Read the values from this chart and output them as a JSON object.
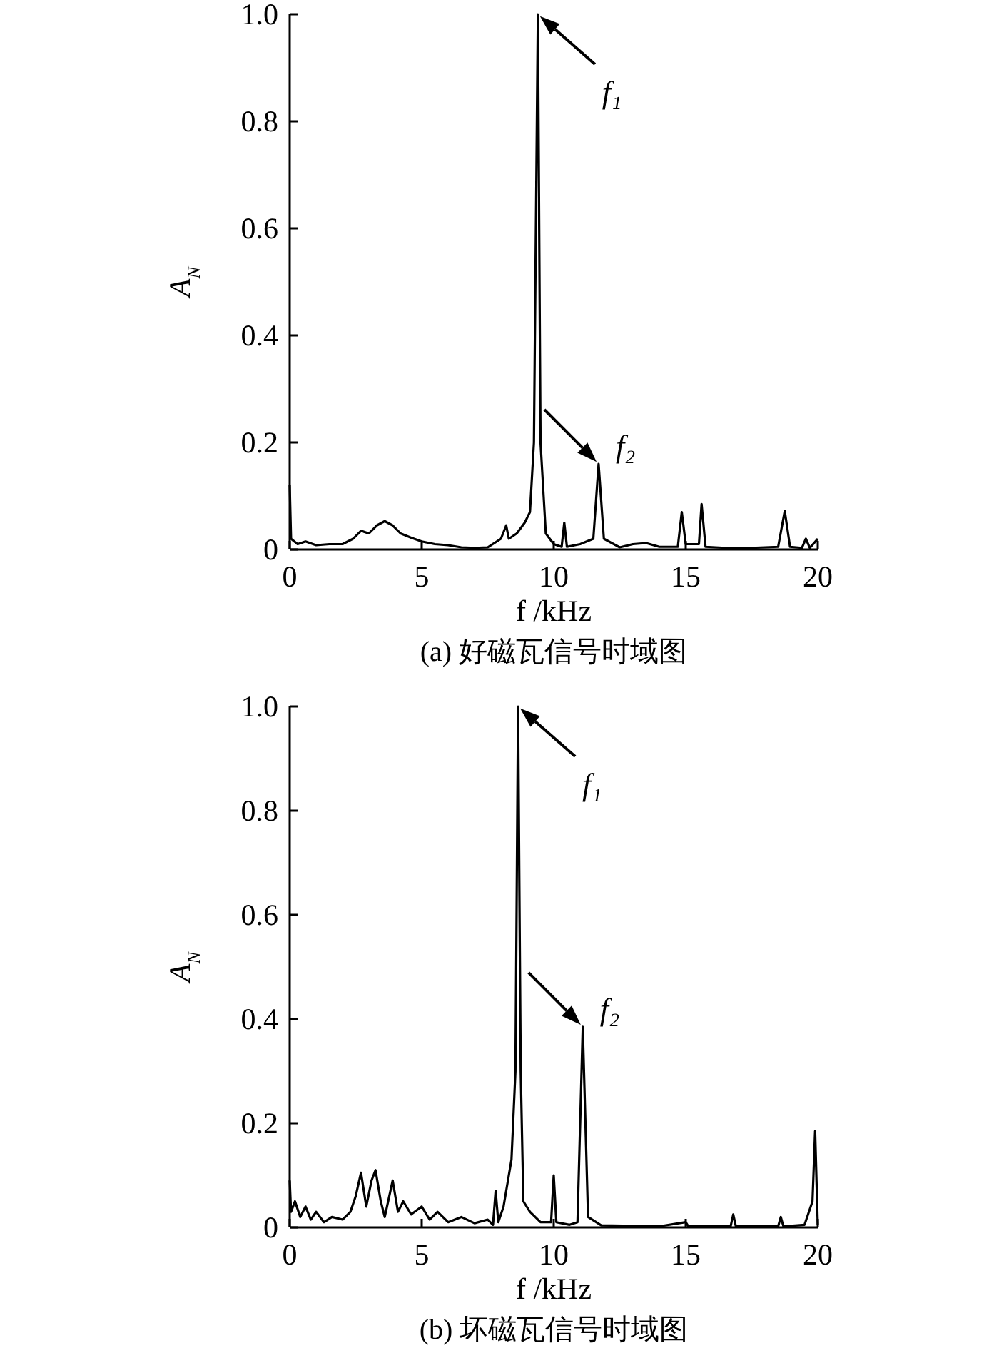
{
  "chart_data": [
    {
      "type": "line",
      "title": "(a) 好磁瓦信号时域图",
      "xlabel": "f /kHz",
      "ylabel": "A$_{N}$",
      "xlim": [
        0,
        20
      ],
      "xticks": [
        0,
        5,
        10,
        15,
        20
      ],
      "ylim": [
        0,
        1.0
      ],
      "yticks": [
        {
          "value": 0,
          "label": "0"
        },
        {
          "value": 0.2,
          "label": "0.2"
        },
        {
          "value": 0.4,
          "label": "0.4"
        },
        {
          "value": 0.6,
          "label": "0.6"
        },
        {
          "value": 0.8,
          "label": "0.8"
        },
        {
          "value": 1.0,
          "label": "1.0"
        }
      ],
      "grid": false,
      "series": [
        {
          "color": "#000000",
          "x": [
            0,
            0.05,
            0.3,
            0.6,
            1.0,
            1.5,
            2.0,
            2.4,
            2.7,
            3.0,
            3.3,
            3.6,
            3.9,
            4.2,
            4.6,
            5.0,
            5.5,
            6.0,
            6.5,
            7.0,
            7.5,
            8.0,
            8.2,
            8.3,
            8.6,
            8.9,
            9.1,
            9.25,
            9.4,
            9.5,
            9.7,
            10.0,
            10.3,
            10.4,
            10.5,
            11.0,
            11.5,
            11.7,
            11.9,
            12.5,
            13,
            13.5,
            14,
            14.7,
            14.85,
            15.0,
            15.5,
            15.6,
            15.75,
            16.5,
            17.5,
            18.5,
            18.75,
            18.95,
            19.4,
            19.55,
            19.7,
            20
          ],
          "values": [
            0.12,
            0.02,
            0.01,
            0.015,
            0.008,
            0.01,
            0.01,
            0.02,
            0.035,
            0.03,
            0.045,
            0.053,
            0.045,
            0.03,
            0.022,
            0.015,
            0.01,
            0.008,
            0.004,
            0.003,
            0.004,
            0.02,
            0.045,
            0.02,
            0.03,
            0.05,
            0.07,
            0.2,
            1.0,
            0.2,
            0.03,
            0.01,
            0.005,
            0.05,
            0.005,
            0.01,
            0.02,
            0.16,
            0.02,
            0.004,
            0.01,
            0.012,
            0.005,
            0.005,
            0.07,
            0.01,
            0.01,
            0.085,
            0.005,
            0.003,
            0.003,
            0.005,
            0.072,
            0.005,
            0.003,
            0.02,
            0.003,
            0.02
          ]
        }
      ],
      "annotations": [
        {
          "text": "f₁",
          "x": 9.4,
          "y": 1.0
        },
        {
          "text": "f₂",
          "x": 11.7,
          "y": 0.16
        }
      ]
    },
    {
      "type": "line",
      "title": "(b) 坏磁瓦信号时域图",
      "xlabel": "f /kHz",
      "ylabel": "A$_{N}$",
      "xlim": [
        0,
        20
      ],
      "xticks": [
        0,
        5,
        10,
        15,
        20
      ],
      "ylim": [
        0,
        1.0
      ],
      "yticks": [
        {
          "value": 0,
          "label": "0"
        },
        {
          "value": 0.2,
          "label": "0.2"
        },
        {
          "value": 0.4,
          "label": "0.4"
        },
        {
          "value": 0.6,
          "label": "0.6"
        },
        {
          "value": 0.8,
          "label": "0.8"
        },
        {
          "value": 1.0,
          "label": "1.0"
        }
      ],
      "grid": false,
      "series": [
        {
          "color": "#000000",
          "x": [
            0,
            0.05,
            0.2,
            0.4,
            0.6,
            0.8,
            1.0,
            1.3,
            1.6,
            2.0,
            2.3,
            2.5,
            2.7,
            2.9,
            3.1,
            3.25,
            3.45,
            3.6,
            3.9,
            4.1,
            4.3,
            4.6,
            5.0,
            5.3,
            5.6,
            6.0,
            6.5,
            7.0,
            7.5,
            7.7,
            7.8,
            7.9,
            8.1,
            8.4,
            8.55,
            8.65,
            8.75,
            8.85,
            9.1,
            9.5,
            9.9,
            10.0,
            10.1,
            10.6,
            10.9,
            11.1,
            11.3,
            11.8,
            13,
            14,
            15,
            15.1,
            16.7,
            16.8,
            16.9,
            18.5,
            18.6,
            18.7,
            19.5,
            19.8,
            19.9,
            20
          ],
          "values": [
            0.09,
            0.03,
            0.05,
            0.02,
            0.04,
            0.015,
            0.03,
            0.01,
            0.02,
            0.015,
            0.03,
            0.06,
            0.105,
            0.04,
            0.09,
            0.11,
            0.05,
            0.02,
            0.09,
            0.03,
            0.05,
            0.025,
            0.04,
            0.015,
            0.03,
            0.01,
            0.02,
            0.008,
            0.015,
            0.005,
            0.07,
            0.01,
            0.04,
            0.13,
            0.3,
            1.0,
            0.3,
            0.05,
            0.03,
            0.01,
            0.01,
            0.1,
            0.01,
            0.005,
            0.01,
            0.385,
            0.02,
            0.004,
            0.003,
            0.002,
            0.01,
            0.002,
            0.002,
            0.025,
            0.002,
            0.002,
            0.02,
            0.002,
            0.005,
            0.05,
            0.185,
            0.005
          ]
        }
      ],
      "annotations": [
        {
          "text": "f₁",
          "x": 8.65,
          "y": 1.0
        },
        {
          "text": "f₂",
          "x": 11.1,
          "y": 0.385
        }
      ]
    }
  ]
}
